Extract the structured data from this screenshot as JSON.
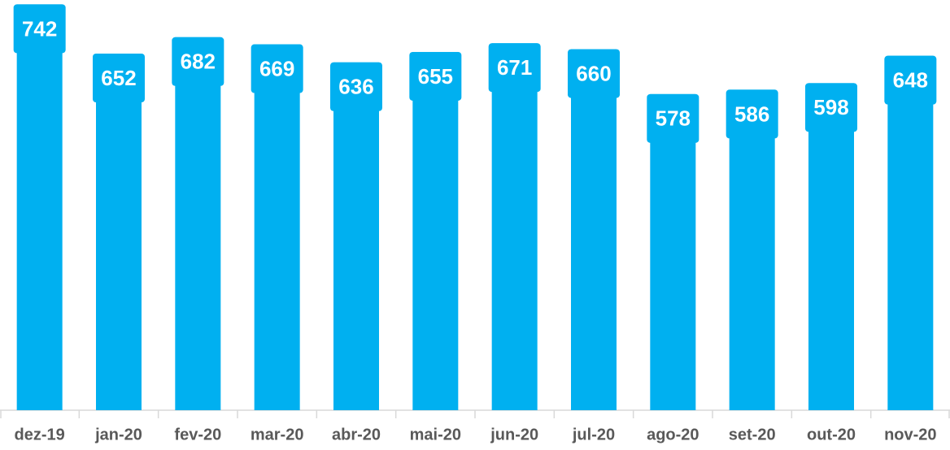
{
  "chart_data": {
    "type": "bar",
    "categories": [
      "dez-19",
      "jan-20",
      "fev-20",
      "mar-20",
      "abr-20",
      "mai-20",
      "jun-20",
      "jul-20",
      "ago-20",
      "set-20",
      "out-20",
      "nov-20"
    ],
    "values": [
      742,
      652,
      682,
      669,
      636,
      655,
      671,
      660,
      578,
      586,
      598,
      648
    ],
    "color": "#00b0f0",
    "ylim": [
      0,
      750
    ]
  }
}
